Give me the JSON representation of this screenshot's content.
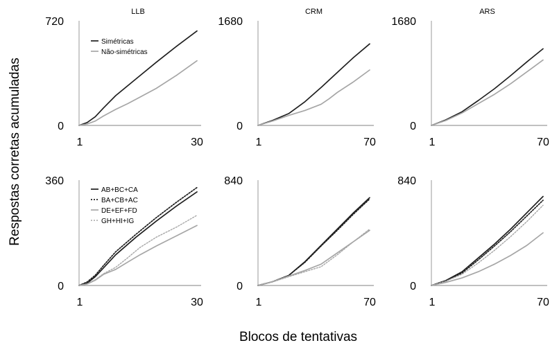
{
  "figure": {
    "ylabel": "Respostas corretas acumuladas",
    "xlabel": "Blocos de tentativas"
  },
  "colors": {
    "dark": "#1f1f1f",
    "light": "#a6a6a6",
    "axis": "#9a9a9a"
  },
  "chart_data": [
    {
      "type": "line",
      "title": "LLB",
      "xticks": [
        "1",
        "30"
      ],
      "yticks": [
        "0",
        "720"
      ],
      "xlim": [
        1,
        30
      ],
      "ylim": [
        0,
        720
      ],
      "legend": {
        "placement": "top-left"
      },
      "series": [
        {
          "name": "Simétricas",
          "style": "dark-solid",
          "x": [
            1,
            3,
            5,
            7,
            10,
            15,
            20,
            25,
            30
          ],
          "y": [
            0,
            20,
            60,
            120,
            205,
            320,
            435,
            545,
            650
          ]
        },
        {
          "name": "Não-simétricas",
          "style": "light-solid",
          "x": [
            1,
            3,
            5,
            7,
            10,
            13,
            16,
            20,
            25,
            30
          ],
          "y": [
            0,
            10,
            30,
            65,
            110,
            150,
            195,
            255,
            345,
            445
          ]
        }
      ]
    },
    {
      "type": "line",
      "title": "CRM",
      "xticks": [
        "1",
        "70"
      ],
      "yticks": [
        "0",
        "1680"
      ],
      "xlim": [
        1,
        70
      ],
      "ylim": [
        0,
        1680
      ],
      "series": [
        {
          "style": "dark-solid",
          "x": [
            1,
            10,
            20,
            30,
            40,
            50,
            60,
            70
          ],
          "y": [
            0,
            80,
            190,
            380,
            610,
            850,
            1090,
            1310
          ]
        },
        {
          "style": "light-solid",
          "x": [
            1,
            10,
            20,
            30,
            40,
            45,
            50,
            60,
            70
          ],
          "y": [
            0,
            70,
            160,
            240,
            340,
            430,
            530,
            700,
            890
          ]
        }
      ]
    },
    {
      "type": "line",
      "title": "ARS",
      "xticks": [
        "1",
        "70"
      ],
      "yticks": [
        "0",
        "1680"
      ],
      "xlim": [
        1,
        70
      ],
      "ylim": [
        0,
        1680
      ],
      "series": [
        {
          "style": "dark-solid",
          "x": [
            1,
            10,
            20,
            30,
            40,
            50,
            60,
            70
          ],
          "y": [
            0,
            90,
            220,
            400,
            590,
            800,
            1020,
            1230
          ]
        },
        {
          "style": "light-solid",
          "x": [
            1,
            10,
            20,
            30,
            40,
            50,
            60,
            70
          ],
          "y": [
            0,
            80,
            200,
            350,
            500,
            670,
            860,
            1050
          ]
        }
      ]
    },
    {
      "type": "line",
      "title": "",
      "xticks": [
        "1",
        "30"
      ],
      "yticks": [
        "0",
        "360"
      ],
      "xlim": [
        1,
        30
      ],
      "ylim": [
        0,
        360
      ],
      "legend": {
        "placement": "top-left"
      },
      "series": [
        {
          "name": "AB+BC+CA",
          "style": "dark-solid",
          "x": [
            1,
            3,
            5,
            7,
            10,
            15,
            20,
            25,
            30
          ],
          "y": [
            0,
            8,
            30,
            60,
            105,
            165,
            220,
            272,
            320
          ]
        },
        {
          "name": "BA+CB+AC",
          "style": "dark-dotted",
          "x": [
            1,
            3,
            5,
            7,
            10,
            15,
            20,
            25,
            30
          ],
          "y": [
            0,
            12,
            35,
            68,
            115,
            175,
            232,
            285,
            335
          ]
        },
        {
          "name": "DE+EF+FD",
          "style": "light-solid",
          "x": [
            1,
            3,
            5,
            7,
            10,
            13,
            16,
            20,
            25,
            30
          ],
          "y": [
            0,
            5,
            18,
            38,
            55,
            80,
            105,
            135,
            170,
            205
          ]
        },
        {
          "name": "GH+HI+IG",
          "style": "light-dotted",
          "x": [
            1,
            3,
            5,
            7,
            10,
            13,
            16,
            20,
            25,
            30
          ],
          "y": [
            0,
            6,
            20,
            40,
            62,
            95,
            130,
            165,
            200,
            240
          ]
        }
      ]
    },
    {
      "type": "line",
      "title": "",
      "xticks": [
        "1",
        "70"
      ],
      "yticks": [
        "0",
        "840"
      ],
      "xlim": [
        1,
        70
      ],
      "ylim": [
        0,
        840
      ],
      "series": [
        {
          "style": "dark-solid",
          "x": [
            1,
            10,
            20,
            30,
            40,
            50,
            60,
            70
          ],
          "y": [
            0,
            30,
            80,
            190,
            320,
            450,
            580,
            700
          ]
        },
        {
          "style": "dark-dotted",
          "x": [
            1,
            10,
            20,
            30,
            40,
            50,
            60,
            70
          ],
          "y": [
            0,
            30,
            80,
            185,
            315,
            440,
            570,
            690
          ]
        },
        {
          "style": "light-solid",
          "x": [
            1,
            10,
            20,
            30,
            40,
            50,
            60,
            70
          ],
          "y": [
            0,
            30,
            75,
            120,
            170,
            260,
            350,
            440
          ]
        },
        {
          "style": "light-dotted",
          "x": [
            1,
            10,
            20,
            30,
            40,
            50,
            60,
            70
          ],
          "y": [
            0,
            28,
            70,
            110,
            150,
            245,
            350,
            450
          ]
        }
      ]
    },
    {
      "type": "line",
      "title": "",
      "xticks": [
        "1",
        "70"
      ],
      "yticks": [
        "0",
        "840"
      ],
      "xlim": [
        1,
        70
      ],
      "ylim": [
        0,
        840
      ],
      "series": [
        {
          "style": "dark-solid",
          "x": [
            1,
            10,
            20,
            30,
            40,
            50,
            60,
            70
          ],
          "y": [
            0,
            40,
            110,
            220,
            330,
            450,
            580,
            710
          ]
        },
        {
          "style": "dark-dotted",
          "x": [
            1,
            10,
            20,
            30,
            40,
            50,
            60,
            70
          ],
          "y": [
            0,
            35,
            100,
            205,
            315,
            430,
            555,
            680
          ]
        },
        {
          "style": "light-solid",
          "x": [
            1,
            10,
            20,
            30,
            40,
            50,
            60,
            70
          ],
          "y": [
            0,
            25,
            60,
            110,
            170,
            240,
            320,
            420
          ]
        },
        {
          "style": "light-dotted",
          "x": [
            1,
            10,
            20,
            30,
            40,
            50,
            60,
            70
          ],
          "y": [
            0,
            35,
            90,
            180,
            280,
            390,
            510,
            640
          ]
        }
      ]
    }
  ]
}
